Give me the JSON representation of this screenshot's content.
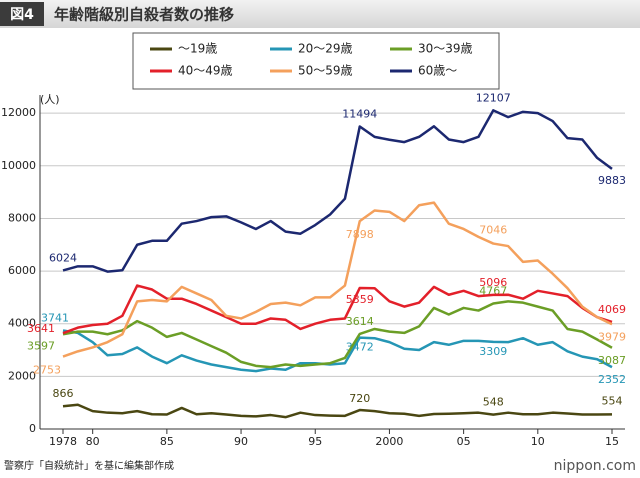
{
  "chart_data": {
    "type": "line",
    "figure_label": "図4",
    "title": "年齢階級別自殺者数の推移",
    "y_unit": "(人)",
    "source": "警察庁「自殺統計」を基に編集部作成",
    "logo": "nippon.com",
    "x": [
      1978,
      1979,
      1980,
      1981,
      1982,
      1983,
      1984,
      1985,
      1986,
      1987,
      1988,
      1989,
      1990,
      1991,
      1992,
      1993,
      1994,
      1995,
      1996,
      1997,
      1998,
      1999,
      2000,
      2001,
      2002,
      2003,
      2004,
      2005,
      2006,
      2007,
      2008,
      2009,
      2010,
      2011,
      2012,
      2013,
      2014,
      2015
    ],
    "xlim": [
      1978,
      2015
    ],
    "xticks": [
      1978,
      {
        "value": 1980,
        "label": "80"
      },
      {
        "value": 1985,
        "label": "85"
      },
      {
        "value": 1990,
        "label": "90"
      },
      {
        "value": 1995,
        "label": "95"
      },
      2000,
      {
        "value": 2005,
        "label": "05"
      },
      {
        "value": 2010,
        "label": "10"
      },
      {
        "value": 2015,
        "label": "15"
      }
    ],
    "ylim": [
      0,
      12500
    ],
    "yticks": [
      0,
      2000,
      4000,
      6000,
      8000,
      10000,
      12000
    ],
    "grid": true,
    "label_indices": [
      0,
      20,
      29,
      37
    ],
    "series": [
      {
        "name": "〜19歳",
        "color": "#4a4712",
        "values": [
          866,
          920,
          680,
          620,
          600,
          680,
          560,
          550,
          800,
          560,
          600,
          550,
          500,
          480,
          530,
          450,
          620,
          530,
          510,
          500,
          720,
          680,
          600,
          580,
          500,
          570,
          580,
          600,
          620,
          548,
          620,
          560,
          560,
          620,
          590,
          550,
          550,
          554
        ]
      },
      {
        "name": "20〜29歳",
        "color": "#2596b5",
        "values": [
          3741,
          3650,
          3300,
          2800,
          2850,
          3100,
          2750,
          2500,
          2800,
          2600,
          2450,
          2350,
          2250,
          2200,
          2300,
          2250,
          2500,
          2500,
          2450,
          2500,
          3472,
          3450,
          3300,
          3050,
          3000,
          3300,
          3200,
          3350,
          3350,
          3309,
          3300,
          3450,
          3200,
          3300,
          2950,
          2750,
          2650,
          2352
        ]
      },
      {
        "name": "30〜39歳",
        "color": "#6b9e26",
        "values": [
          3597,
          3700,
          3700,
          3600,
          3750,
          4100,
          3850,
          3500,
          3650,
          3400,
          3150,
          2900,
          2550,
          2400,
          2350,
          2450,
          2400,
          2450,
          2500,
          2700,
          3614,
          3800,
          3700,
          3650,
          3900,
          4600,
          4350,
          4600,
          4500,
          4767,
          4850,
          4800,
          4650,
          4500,
          3800,
          3700,
          3400,
          3087
        ]
      },
      {
        "name": "40〜49歳",
        "color": "#e3202a",
        "values": [
          3641,
          3850,
          3950,
          4000,
          4300,
          5450,
          5300,
          4950,
          4950,
          4750,
          4500,
          4250,
          4000,
          4000,
          4200,
          4150,
          3800,
          4000,
          4150,
          4200,
          5359,
          5350,
          4850,
          4650,
          4800,
          5400,
          5100,
          5250,
          5050,
          5096,
          5100,
          4950,
          5250,
          5150,
          5050,
          4600,
          4250,
          4069
        ]
      },
      {
        "name": "50〜59歳",
        "color": "#f4a05c",
        "values": [
          2753,
          2950,
          3100,
          3300,
          3600,
          4850,
          4900,
          4850,
          5400,
          5150,
          4900,
          4300,
          4200,
          4450,
          4750,
          4800,
          4700,
          5000,
          5000,
          5450,
          7898,
          8300,
          8250,
          7900,
          8500,
          8600,
          7800,
          7600,
          7300,
          7046,
          6950,
          6350,
          6400,
          5900,
          5350,
          4650,
          4250,
          3979
        ]
      },
      {
        "name": "60歳〜",
        "color": "#1c2870",
        "values": [
          6024,
          6180,
          6180,
          5980,
          6030,
          7000,
          7150,
          7150,
          7800,
          7900,
          8050,
          8080,
          7850,
          7600,
          7900,
          7500,
          7420,
          7750,
          8150,
          8750,
          11494,
          11100,
          10990,
          10900,
          11100,
          11500,
          11000,
          10900,
          11100,
          12107,
          11850,
          12050,
          12000,
          11700,
          11050,
          11000,
          10300,
          9883
        ]
      }
    ]
  }
}
